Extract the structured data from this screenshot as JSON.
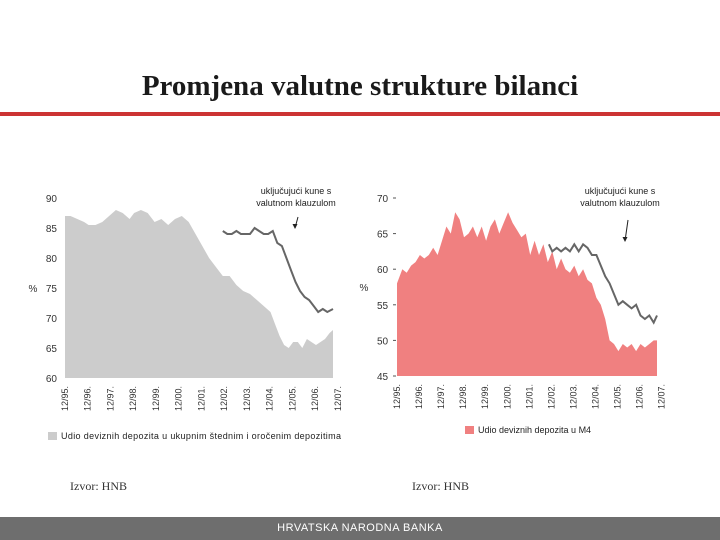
{
  "slide": {
    "title": "Promjena valutne strukture bilanci",
    "footer": "HRVATSKA NARODNA BANKA",
    "colors": {
      "rule": "#cc3333",
      "footer": "#6e6e6e"
    }
  },
  "chart_data": [
    {
      "type": "area",
      "ylabel": "%",
      "ylim": [
        60,
        90
      ],
      "yticks": [
        60,
        65,
        70,
        75,
        80,
        85,
        90
      ],
      "xlim": [
        1995.96,
        2007.75
      ],
      "xticks": [
        {
          "x": 1995.96,
          "label": "12/95."
        },
        {
          "x": 1996.96,
          "label": "12/96."
        },
        {
          "x": 1997.96,
          "label": "12/97."
        },
        {
          "x": 1998.96,
          "label": "12/98."
        },
        {
          "x": 1999.96,
          "label": "12/99."
        },
        {
          "x": 2000.96,
          "label": "12/00."
        },
        {
          "x": 2001.96,
          "label": "12/01."
        },
        {
          "x": 2002.96,
          "label": "12/02."
        },
        {
          "x": 2003.96,
          "label": "12/03."
        },
        {
          "x": 2004.96,
          "label": "12/04."
        },
        {
          "x": 2005.96,
          "label": "12/05."
        },
        {
          "x": 2006.96,
          "label": "12/06."
        },
        {
          "x": 2007.96,
          "label": "12/07."
        }
      ],
      "area_series": {
        "name": "Udio deviznih depozita u ukupnim štednim i oročenim depozitima",
        "color": "#cccccc",
        "x": [
          1995.96,
          1996.2,
          1996.5,
          1996.8,
          1997.0,
          1997.3,
          1997.6,
          1997.9,
          1998.2,
          1998.5,
          1998.8,
          1999.0,
          1999.3,
          1999.6,
          1999.9,
          2000.2,
          2000.5,
          2000.8,
          2001.1,
          2001.4,
          2001.7,
          2002.0,
          2002.3,
          2002.6,
          2002.9,
          2003.2,
          2003.5,
          2003.8,
          2004.1,
          2004.4,
          2004.7,
          2005.0,
          2005.2,
          2005.4,
          2005.6,
          2005.8,
          2006.0,
          2006.2,
          2006.4,
          2006.6,
          2006.8,
          2007.0,
          2007.2,
          2007.4,
          2007.6,
          2007.75
        ],
        "values": [
          87.0,
          87.0,
          86.5,
          86.0,
          85.5,
          85.5,
          86.0,
          87.0,
          88.0,
          87.5,
          86.5,
          87.5,
          88.0,
          87.5,
          86.0,
          86.5,
          85.5,
          86.5,
          87.0,
          86.0,
          84.0,
          82.0,
          80.0,
          78.5,
          77.0,
          77.0,
          75.5,
          74.5,
          74.0,
          73.0,
          72.0,
          71.0,
          69.0,
          67.0,
          65.5,
          65.0,
          66.0,
          66.0,
          65.0,
          66.5,
          66.0,
          65.5,
          66.0,
          66.5,
          67.5,
          68.0
        ]
      },
      "line_series": {
        "name": "uključujući kune s valutnom klauzulom",
        "color": "#666666",
        "x": [
          2002.9,
          2003.1,
          2003.3,
          2003.5,
          2003.7,
          2003.9,
          2004.1,
          2004.3,
          2004.5,
          2004.7,
          2004.9,
          2005.1,
          2005.3,
          2005.5,
          2005.7,
          2005.9,
          2006.1,
          2006.3,
          2006.5,
          2006.7,
          2006.9,
          2007.1,
          2007.3,
          2007.5,
          2007.75
        ],
        "values": [
          84.5,
          84.0,
          84.0,
          84.5,
          84.0,
          84.0,
          84.0,
          85.0,
          84.5,
          84.0,
          84.0,
          84.5,
          82.5,
          82.0,
          80.0,
          78.0,
          76.0,
          74.5,
          73.5,
          73.0,
          72.0,
          71.0,
          71.5,
          71.0,
          71.5
        ]
      },
      "annotation": "uključujući kune s valutnom klauzulom",
      "legend": "Udio deviznih depozita u ukupnim štednim i oročenim depozitima",
      "source": "Izvor: HNB"
    },
    {
      "type": "area",
      "ylabel": "%",
      "ylim": [
        45,
        70
      ],
      "yticks": [
        45,
        50,
        55,
        60,
        65,
        70
      ],
      "xlim": [
        1995.96,
        2007.75
      ],
      "xticks": [
        {
          "x": 1995.96,
          "label": "12/95."
        },
        {
          "x": 1996.96,
          "label": "12/96."
        },
        {
          "x": 1997.96,
          "label": "12/97."
        },
        {
          "x": 1998.96,
          "label": "12/98."
        },
        {
          "x": 1999.96,
          "label": "12/99."
        },
        {
          "x": 2000.96,
          "label": "12/00."
        },
        {
          "x": 2001.96,
          "label": "12/01."
        },
        {
          "x": 2002.96,
          "label": "12/02."
        },
        {
          "x": 2003.96,
          "label": "12/03."
        },
        {
          "x": 2004.96,
          "label": "12/04."
        },
        {
          "x": 2005.96,
          "label": "12/05."
        },
        {
          "x": 2006.96,
          "label": "12/06."
        },
        {
          "x": 2007.96,
          "label": "12/07."
        }
      ],
      "area_series": {
        "name": "Udio deviznih depozita u M4",
        "color": "#f08080",
        "x": [
          1995.96,
          1996.2,
          1996.4,
          1996.6,
          1996.8,
          1997.0,
          1997.2,
          1997.4,
          1997.6,
          1997.8,
          1998.0,
          1998.2,
          1998.4,
          1998.6,
          1998.8,
          1999.0,
          1999.2,
          1999.4,
          1999.6,
          1999.8,
          2000.0,
          2000.2,
          2000.4,
          2000.6,
          2000.8,
          2001.0,
          2001.2,
          2001.4,
          2001.6,
          2001.8,
          2002.0,
          2002.2,
          2002.4,
          2002.6,
          2002.8,
          2003.0,
          2003.2,
          2003.4,
          2003.6,
          2003.8,
          2004.0,
          2004.2,
          2004.4,
          2004.6,
          2004.8,
          2005.0,
          2005.2,
          2005.4,
          2005.6,
          2005.8,
          2006.0,
          2006.2,
          2006.4,
          2006.6,
          2006.8,
          2007.0,
          2007.2,
          2007.4,
          2007.6,
          2007.75
        ],
        "values": [
          58.0,
          60.0,
          59.5,
          60.5,
          61.0,
          62.0,
          61.5,
          62.0,
          63.0,
          62.0,
          64.0,
          66.0,
          65.0,
          68.0,
          67.0,
          64.5,
          65.0,
          66.0,
          64.5,
          66.0,
          64.0,
          66.0,
          67.0,
          65.0,
          66.5,
          68.0,
          66.5,
          65.5,
          64.5,
          65.0,
          62.0,
          64.0,
          62.0,
          63.5,
          61.0,
          62.5,
          60.0,
          61.5,
          60.0,
          59.5,
          60.5,
          59.0,
          60.0,
          58.5,
          58.0,
          56.0,
          55.0,
          53.0,
          50.0,
          49.5,
          48.5,
          49.5,
          49.0,
          49.5,
          48.5,
          49.5,
          49.0,
          49.5,
          50.0,
          50.0
        ]
      },
      "line_series": {
        "name": "uključujući kune s valutnom klauzulom",
        "color": "#666666",
        "x": [
          2002.85,
          2003.0,
          2003.2,
          2003.4,
          2003.6,
          2003.8,
          2004.0,
          2004.2,
          2004.4,
          2004.6,
          2004.8,
          2005.0,
          2005.2,
          2005.4,
          2005.6,
          2005.8,
          2006.0,
          2006.2,
          2006.4,
          2006.6,
          2006.8,
          2007.0,
          2007.2,
          2007.4,
          2007.6,
          2007.75
        ],
        "values": [
          63.5,
          62.5,
          63.0,
          62.5,
          63.0,
          62.5,
          63.5,
          62.5,
          63.5,
          63.0,
          62.0,
          62.0,
          60.5,
          59.0,
          58.0,
          56.5,
          55.0,
          55.5,
          55.0,
          54.5,
          55.0,
          53.5,
          53.0,
          53.5,
          52.5,
          53.5
        ]
      },
      "annotation": "uključujući kune s valutnom klauzulom",
      "legend": "Udio deviznih depozita u M4",
      "source": "Izvor: HNB"
    }
  ]
}
